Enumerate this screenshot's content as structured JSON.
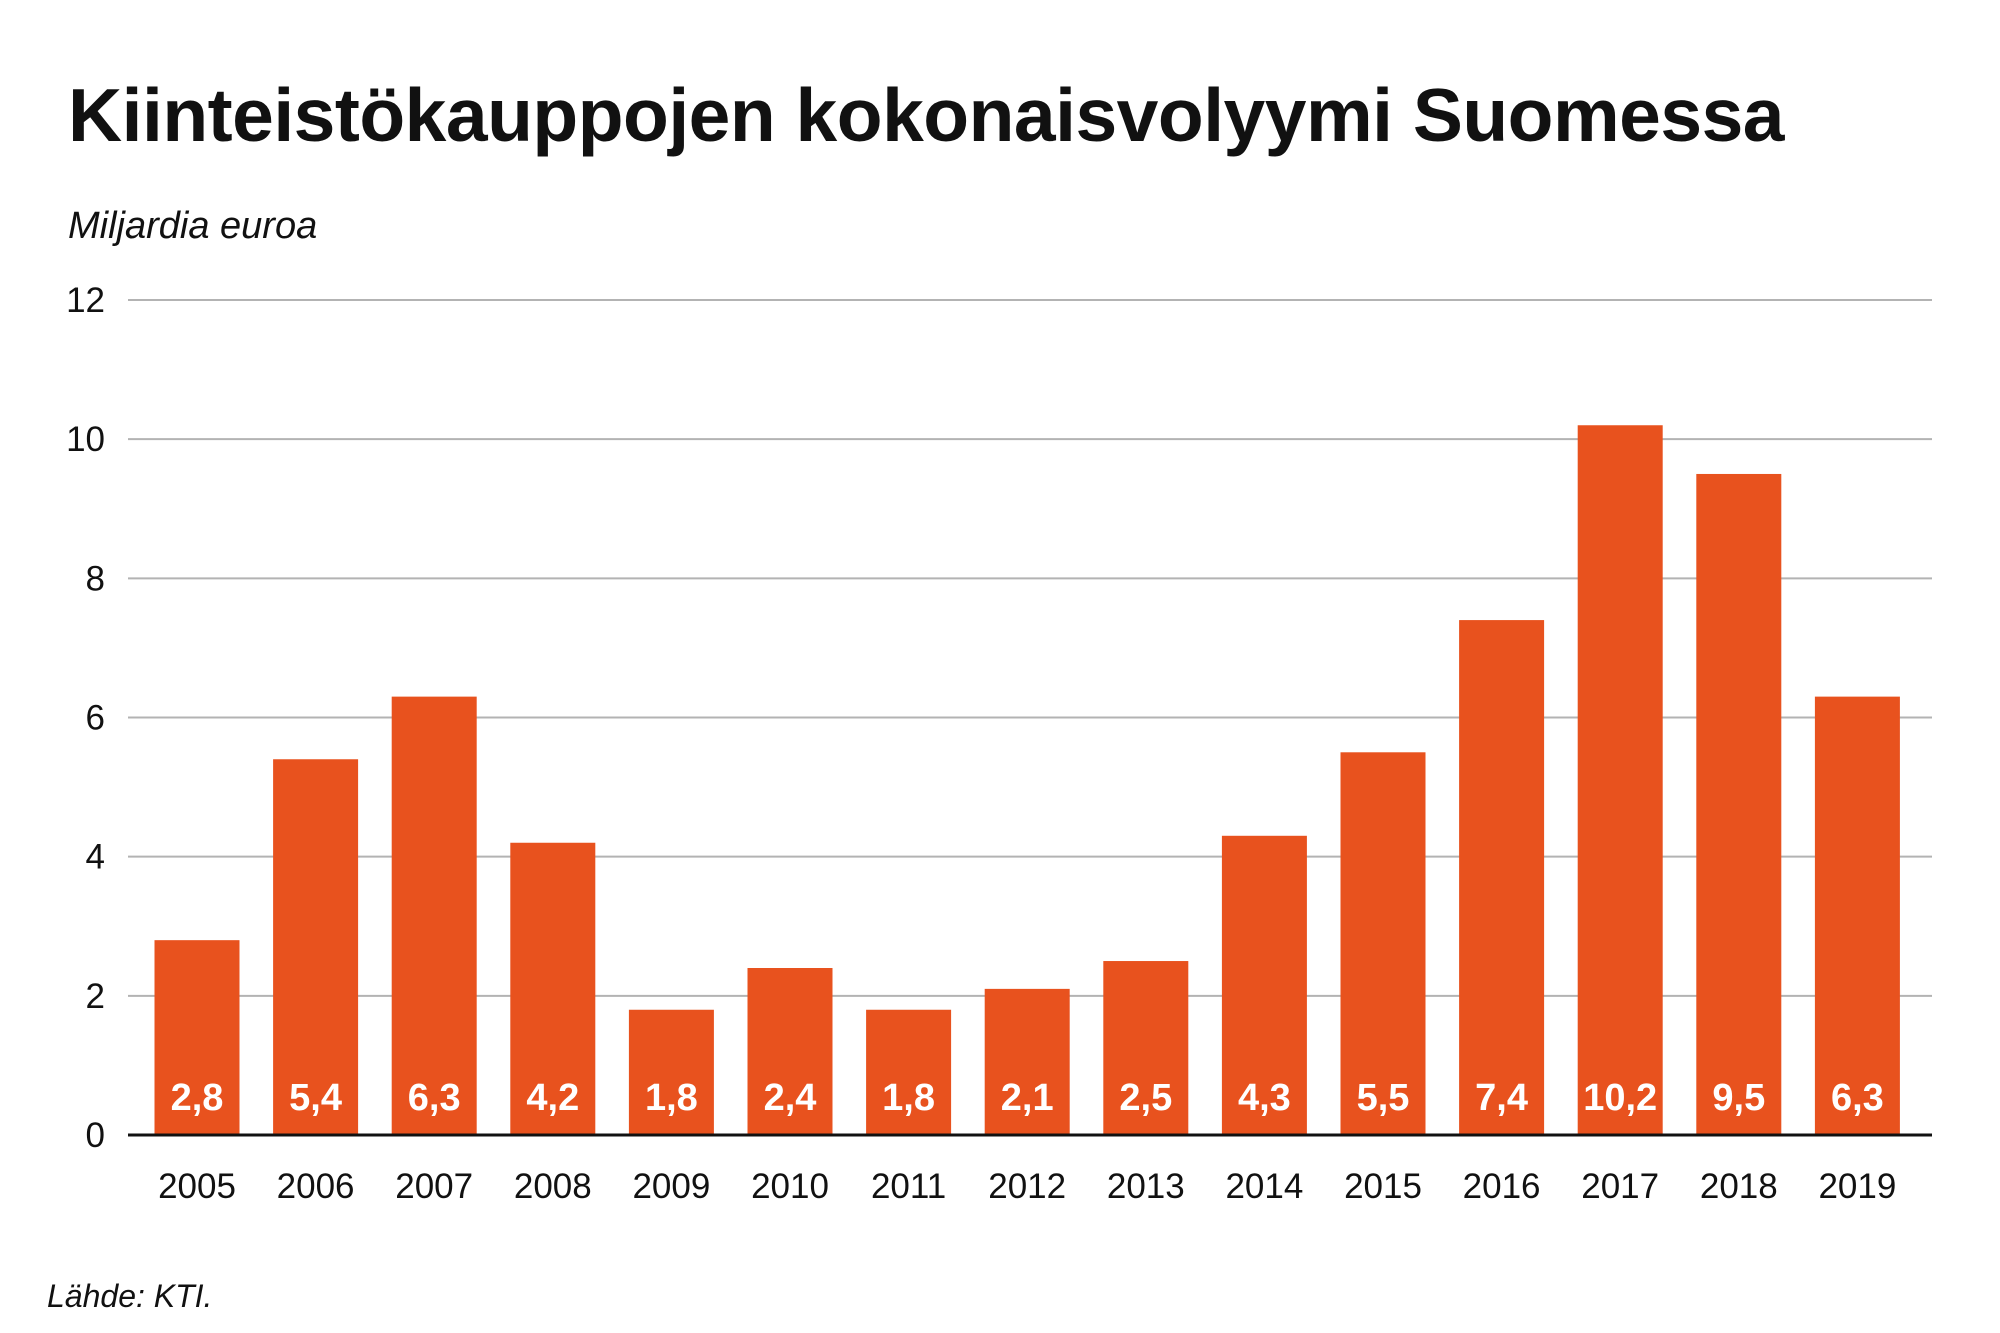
{
  "colors": {
    "bar": "#e8521e",
    "grid": "#b3b3b3",
    "axis": "#111111",
    "text": "#111111",
    "data_label": "#ffffff"
  },
  "chart_data": {
    "type": "bar",
    "title": "Kiinteistökauppojen kokonaisvolyymi Suomessa",
    "ylabel": "Miljardia euroa",
    "source": "Lähde: KTI.",
    "categories": [
      "2005",
      "2006",
      "2007",
      "2008",
      "2009",
      "2010",
      "2011",
      "2012",
      "2013",
      "2014",
      "2015",
      "2016",
      "2017",
      "2018",
      "2019"
    ],
    "values": [
      2.8,
      5.4,
      6.3,
      4.2,
      1.8,
      2.4,
      1.8,
      2.1,
      2.5,
      4.3,
      5.5,
      7.4,
      10.2,
      9.5,
      6.3
    ],
    "value_labels": [
      "2,8",
      "5,4",
      "6,3",
      "4,2",
      "1,8",
      "2,4",
      "1,8",
      "2,1",
      "2,5",
      "4,3",
      "5,5",
      "7,4",
      "10,2",
      "9,5",
      "6,3"
    ],
    "yticks": [
      0,
      2,
      4,
      6,
      8,
      10,
      12
    ],
    "ylim": [
      0,
      12
    ],
    "grid": true,
    "legend": "none"
  }
}
